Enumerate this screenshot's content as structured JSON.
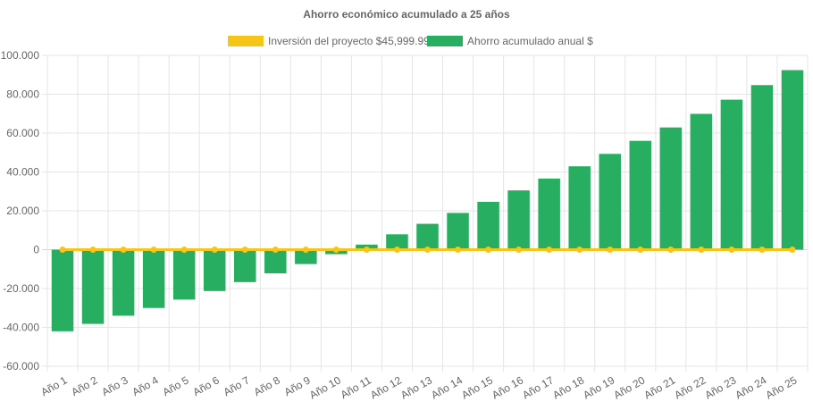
{
  "chart_data": {
    "type": "bar",
    "title": "Ahorro económico acumulado a 25 años",
    "xlabel": "",
    "ylabel": "",
    "ylim": [
      -60000,
      100000
    ],
    "y_ticks": [
      "100.000",
      "80.000",
      "60.000",
      "40.000",
      "20.000",
      "0",
      "-20.000",
      "-40.000",
      "-60.000"
    ],
    "y_tick_values": [
      100000,
      80000,
      60000,
      40000,
      20000,
      0,
      -20000,
      -40000,
      -60000
    ],
    "grid": true,
    "legend_position": "top",
    "categories": [
      "Año 1",
      "Año 2",
      "Año 3",
      "Año 4",
      "Año 5",
      "Año 6",
      "Año 7",
      "Año 8",
      "Año 9",
      "Año 10",
      "Año 11",
      "Año 12",
      "Año 13",
      "Año 14",
      "Año 15",
      "Año 16",
      "Año 17",
      "Año 18",
      "Año 19",
      "Año 20",
      "Año 21",
      "Año 22",
      "Año 23",
      "Año 24",
      "Año 25"
    ],
    "series": [
      {
        "name": "Inversión del proyecto $45,999.99",
        "type": "line",
        "color": "#f5c518",
        "values": [
          0,
          0,
          0,
          0,
          0,
          0,
          0,
          0,
          0,
          0,
          0,
          0,
          0,
          0,
          0,
          0,
          0,
          0,
          0,
          0,
          0,
          0,
          0,
          0,
          0
        ]
      },
      {
        "name": "Ahorro acumulado anual $",
        "type": "bar",
        "color": "#27ae60",
        "values": [
          -42000,
          -38200,
          -34000,
          -30000,
          -25700,
          -21300,
          -16700,
          -12200,
          -7400,
          -2300,
          2600,
          7900,
          13300,
          18900,
          24600,
          30500,
          36600,
          42900,
          49300,
          56000,
          62900,
          69900,
          77200,
          84700,
          92400
        ]
      }
    ]
  }
}
